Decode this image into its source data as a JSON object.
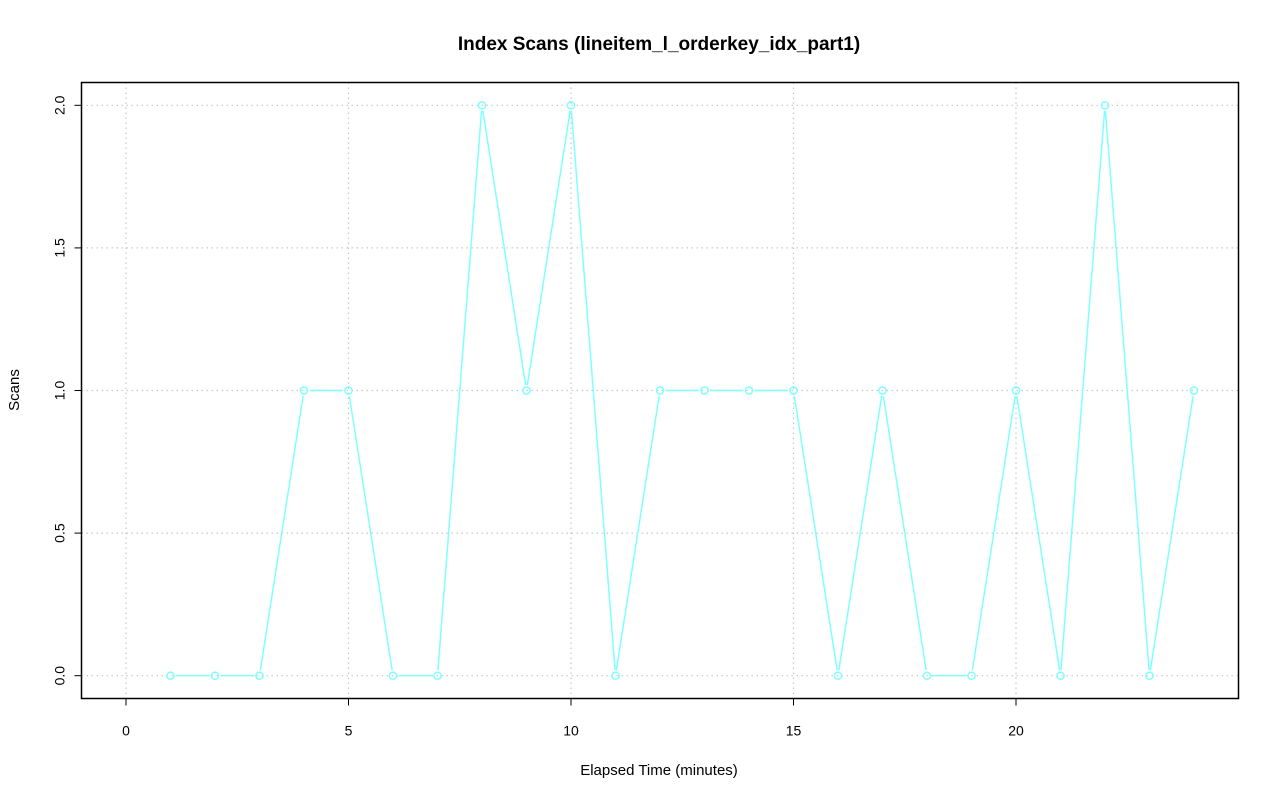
{
  "chart_data": {
    "type": "line",
    "title": "Index Scans (lineitem_l_orderkey_idx_part1)",
    "xlabel": "Elapsed Time (minutes)",
    "ylabel": "Scans",
    "xlim": [
      -1,
      25
    ],
    "ylim": [
      -0.08,
      2.08
    ],
    "x_ticks": [
      0,
      5,
      10,
      15,
      20
    ],
    "y_ticks": [
      0.0,
      0.5,
      1.0,
      1.5,
      2.0
    ],
    "x_tick_labels": [
      "0",
      "5",
      "10",
      "15",
      "20"
    ],
    "y_tick_labels": [
      "0.0",
      "0.5",
      "1.0",
      "1.5",
      "2.0"
    ],
    "grid": true,
    "series": [
      {
        "color": "#80ffff",
        "marker": "open-circle",
        "x": [
          1,
          2,
          3,
          4,
          5,
          6,
          7,
          8,
          9,
          10,
          11,
          12,
          13,
          14,
          15,
          16,
          17,
          18,
          19,
          20,
          21,
          22,
          23,
          24
        ],
        "y": [
          0,
          0,
          0,
          1,
          1,
          0,
          0,
          2,
          1,
          2,
          0,
          1,
          1,
          1,
          1,
          0,
          1,
          0,
          0,
          1,
          0,
          2,
          0,
          1
        ]
      }
    ]
  }
}
